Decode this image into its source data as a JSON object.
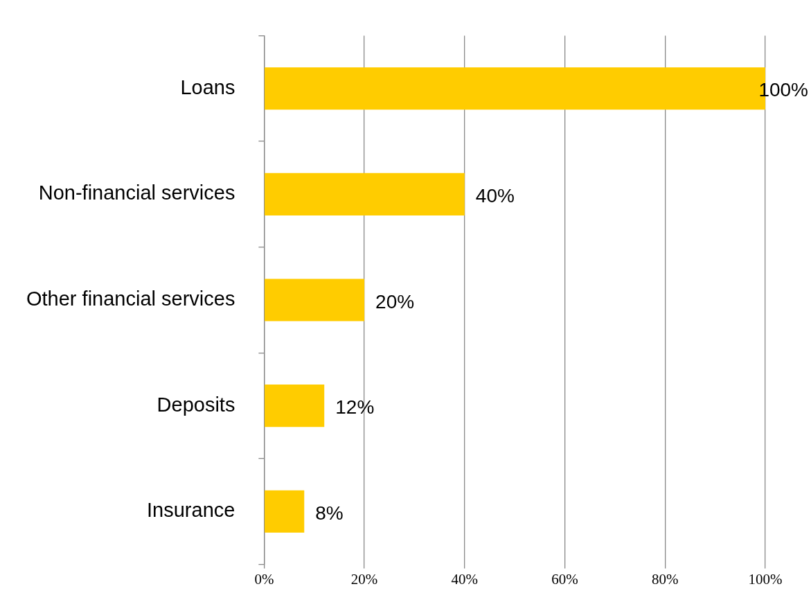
{
  "chart_data": {
    "type": "bar",
    "orientation": "horizontal",
    "categories": [
      "Loans",
      "Non-financial services",
      "Other financial services",
      "Deposits",
      "Insurance"
    ],
    "values": [
      100,
      40,
      20,
      12,
      8
    ],
    "color": "#ffcc00",
    "value_labels": [
      "100%",
      "40%",
      "20%",
      "12%",
      "8%"
    ],
    "xlim": [
      0,
      100
    ],
    "xticks": [
      {
        "value": 0,
        "label": "0%"
      },
      {
        "value": 20,
        "label": "20%"
      },
      {
        "value": 40,
        "label": "40%"
      },
      {
        "value": 60,
        "label": "60%"
      },
      {
        "value": 80,
        "label": "80%"
      },
      {
        "value": 100,
        "label": "100%"
      }
    ],
    "grid": "x"
  }
}
